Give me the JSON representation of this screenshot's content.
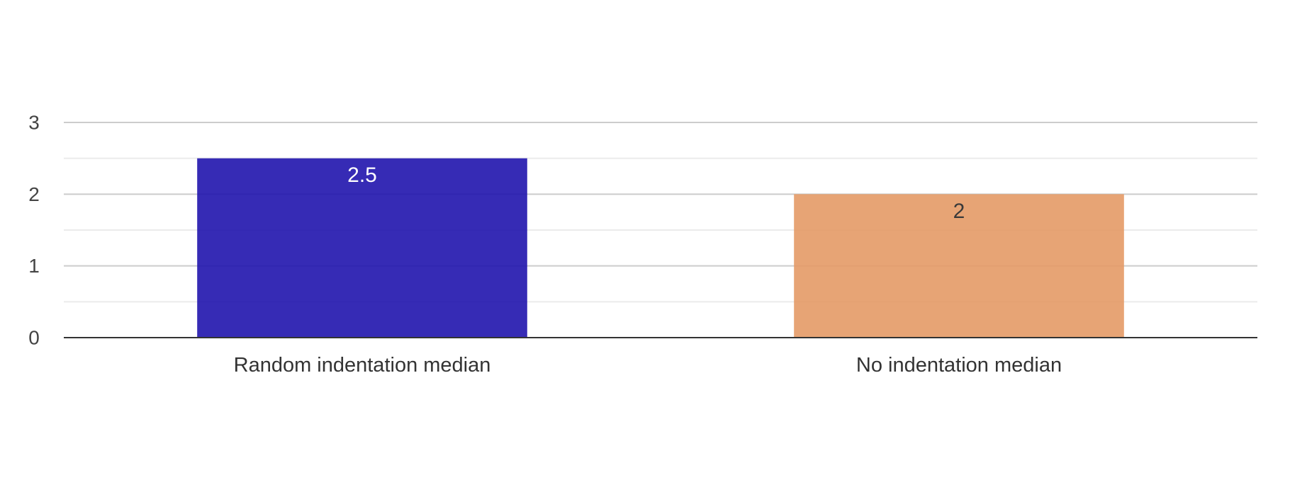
{
  "chart_data": {
    "type": "bar",
    "categories": [
      "Random indentation median",
      "No indentation median"
    ],
    "values": [
      2.5,
      2
    ],
    "data_labels": [
      "2.5",
      "2"
    ],
    "bar_colors": [
      "#2014ad",
      "#e49a66"
    ],
    "data_label_colors": [
      "#ffffff",
      "#3a3a3a"
    ],
    "title": "",
    "xlabel": "",
    "ylabel": "",
    "ylim": [
      0,
      3
    ],
    "yticks": [
      0,
      1,
      2,
      3
    ],
    "ytick_labels": [
      "0",
      "1",
      "2",
      "3"
    ],
    "grid": true,
    "minor_grid": true,
    "legend": "none"
  }
}
